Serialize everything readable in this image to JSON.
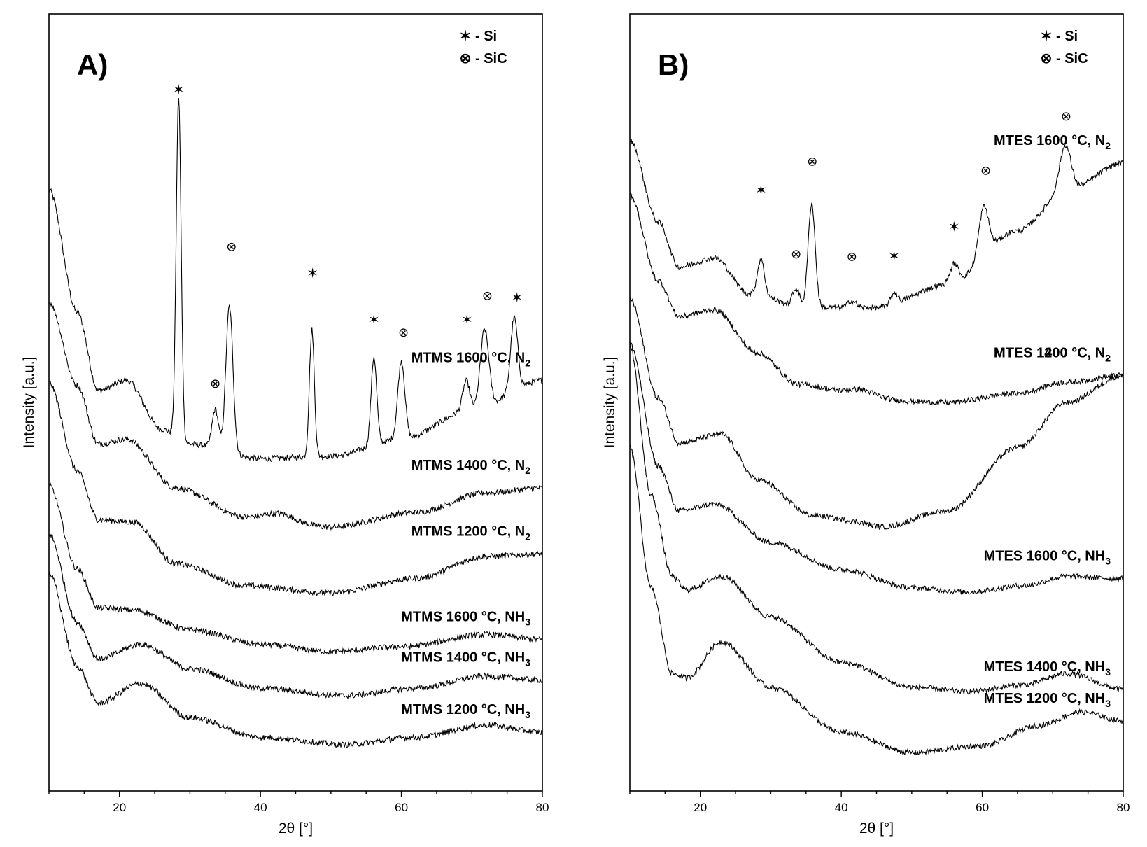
{
  "chart_data": [
    {
      "type": "line",
      "panel_label": "A)",
      "xlabel": "2θ [°]",
      "ylabel": "Intensity [a.u.]",
      "xlim": [
        10,
        80
      ],
      "xticks": [
        "20",
        "40",
        "60",
        "80"
      ],
      "legend": [
        {
          "symbol": "✶",
          "text": "- Si"
        },
        {
          "symbol": "⊗",
          "text": "- SiC"
        }
      ],
      "series": [
        {
          "name": "MTMS 1600 °C, N2",
          "label_main": "MTMS 1600 °C, N",
          "label_sub": "2",
          "offset": 5.2,
          "base_shape": [
            [
              10,
              5.5
            ],
            [
              14,
              3.0
            ],
            [
              17,
              1.4
            ],
            [
              21,
              1.6
            ],
            [
              26,
              0.6
            ],
            [
              30,
              0.3
            ],
            [
              40,
              0.0
            ],
            [
              50,
              0.05
            ],
            [
              60,
              0.4
            ],
            [
              70,
              1.0
            ],
            [
              80,
              1.6
            ]
          ],
          "peaks": [
            [
              28.4,
              7.0,
              0.35
            ],
            [
              33.6,
              0.8,
              0.45
            ],
            [
              35.6,
              3.0,
              0.5
            ],
            [
              47.3,
              2.6,
              0.35
            ],
            [
              56.1,
              1.8,
              0.4
            ],
            [
              60.0,
              1.6,
              0.5
            ],
            [
              69.2,
              0.6,
              0.5
            ],
            [
              71.8,
              1.6,
              0.6
            ],
            [
              76.0,
              1.5,
              0.5
            ]
          ]
        },
        {
          "name": "MTMS 1400 °C, N2",
          "label_main": "MTMS 1400 °C, N",
          "label_sub": "2",
          "offset": 3.9,
          "base_shape": [
            [
              10,
              4.5
            ],
            [
              14,
              2.8
            ],
            [
              17,
              1.6
            ],
            [
              21,
              1.7
            ],
            [
              28,
              0.7
            ],
            [
              38,
              0.1
            ],
            [
              50,
              -0.1
            ],
            [
              62,
              0.2
            ],
            [
              72,
              0.6
            ],
            [
              80,
              0.7
            ]
          ],
          "peaks": [
            [
              43,
              0.15,
              2
            ]
          ]
        },
        {
          "name": "MTMS 1200 °C, N2",
          "label_main": "MTMS 1200 °C, N",
          "label_sub": "2",
          "offset": 2.55,
          "base_shape": [
            [
              10,
              4.2
            ],
            [
              14,
              2.4
            ],
            [
              17,
              1.4
            ],
            [
              22,
              1.35
            ],
            [
              28,
              0.5
            ],
            [
              38,
              0.05
            ],
            [
              50,
              -0.1
            ],
            [
              62,
              0.2
            ],
            [
              72,
              0.65
            ],
            [
              80,
              0.7
            ]
          ],
          "peaks": []
        },
        {
          "name": "MTMS 1600 °C, NH3",
          "label_main": "MTMS 1600 °C, NH",
          "label_sub": "3",
          "offset": 1.35,
          "base_shape": [
            [
              10,
              3.3
            ],
            [
              14,
              1.6
            ],
            [
              17,
              0.8
            ],
            [
              22,
              0.75
            ],
            [
              30,
              0.35
            ],
            [
              40,
              0.05
            ],
            [
              50,
              -0.1
            ],
            [
              60,
              0.0
            ],
            [
              72,
              0.25
            ],
            [
              80,
              0.15
            ]
          ],
          "peaks": []
        },
        {
          "name": "MTMS 1400 °C, NH3",
          "label_main": "MTMS 1400 °C, NH",
          "label_sub": "3",
          "offset": 0.55,
          "base_shape": [
            [
              10,
              3.1
            ],
            [
              14,
              1.3
            ],
            [
              17,
              0.55
            ],
            [
              23,
              0.85
            ],
            [
              30,
              0.35
            ],
            [
              40,
              -0.05
            ],
            [
              52,
              -0.2
            ],
            [
              62,
              -0.05
            ],
            [
              72,
              0.2
            ],
            [
              80,
              0.12
            ]
          ],
          "peaks": []
        },
        {
          "name": "MTMS 1200 °C, NH3",
          "label_main": "MTMS 1200 °C, NH",
          "label_sub": "3",
          "offset": -0.55,
          "base_shape": [
            [
              10,
              3.4
            ],
            [
              14,
              1.5
            ],
            [
              17,
              0.75
            ],
            [
              23,
              1.15
            ],
            [
              30,
              0.45
            ],
            [
              40,
              0.05
            ],
            [
              52,
              -0.1
            ],
            [
              62,
              0.05
            ],
            [
              72,
              0.3
            ],
            [
              80,
              0.15
            ]
          ],
          "peaks": []
        }
      ],
      "markers": [
        {
          "type": "Si",
          "x": 28.4,
          "y": 12.75
        },
        {
          "type": "SiC",
          "x": 35.9,
          "y": 9.55
        },
        {
          "type": "SiC",
          "x": 33.6,
          "y": 6.75
        },
        {
          "type": "Si",
          "x": 47.4,
          "y": 9.0
        },
        {
          "type": "Si",
          "x": 56.1,
          "y": 8.05
        },
        {
          "type": "SiC",
          "x": 60.3,
          "y": 7.8
        },
        {
          "type": "Si",
          "x": 69.3,
          "y": 8.05
        },
        {
          "type": "SiC",
          "x": 72.2,
          "y": 8.55
        },
        {
          "type": "Si",
          "x": 76.4,
          "y": 8.5
        }
      ]
    },
    {
      "type": "line",
      "panel_label": "B)",
      "xlabel": "2θ [°]",
      "ylabel": "Intensity [a.u.]",
      "xlim": [
        10,
        80
      ],
      "xticks": [
        "20",
        "40",
        "60",
        "80"
      ],
      "legend": [
        {
          "symbol": "✶",
          "text": "- Si"
        },
        {
          "symbol": "⊗",
          "text": "- SiC"
        }
      ],
      "series": [
        {
          "name": "MTES 1600 °C, N2",
          "label_main": "MTES 1600 °C, N",
          "label_sub": "2",
          "offset": 7.4,
          "base_shape": [
            [
              10,
              4.1
            ],
            [
              14,
              2.3
            ],
            [
              17,
              1.3
            ],
            [
              22,
              1.5
            ],
            [
              27,
              0.7
            ],
            [
              35,
              0.4
            ],
            [
              45,
              0.4
            ],
            [
              55,
              0.9
            ],
            [
              65,
              2.1
            ],
            [
              72,
              3.0
            ],
            [
              80,
              3.6
            ]
          ],
          "peaks": [
            [
              28.6,
              0.8,
              0.5
            ],
            [
              33.6,
              0.4,
              0.5
            ],
            [
              35.8,
              2.3,
              0.5
            ],
            [
              41.5,
              0.15,
              0.6
            ],
            [
              47.5,
              0.25,
              0.5
            ],
            [
              56.0,
              0.45,
              0.6
            ],
            [
              60.2,
              1.1,
              0.7
            ],
            [
              71.8,
              1.0,
              0.8
            ]
          ]
        },
        {
          "name": "MTES 1400 °C, N2",
          "label_main": "MTES 1400 °C, N",
          "label_sub": "2",
          "offset": 5.6,
          "base_shape": [
            [
              10,
              4.7
            ],
            [
              14,
              2.8
            ],
            [
              17,
              2.0
            ],
            [
              22,
              2.15
            ],
            [
              28,
              1.2
            ],
            [
              34,
              0.5
            ],
            [
              45,
              0.15
            ],
            [
              55,
              0.1
            ],
            [
              65,
              0.3
            ],
            [
              72,
              0.55
            ],
            [
              80,
              0.7
            ]
          ],
          "peaks": [
            [
              43,
              0.2,
              2
            ]
          ]
        },
        {
          "name": "MTES 1200 °C, N2",
          "label_main": "MTES 1200 °C, N",
          "label_sub": "2",
          "offset": 2.7,
          "base_shape": [
            [
              10,
              5.3
            ],
            [
              14,
              3.1
            ],
            [
              17,
              2.1
            ],
            [
              23,
              2.3
            ],
            [
              28,
              1.3
            ],
            [
              36,
              0.5
            ],
            [
              45,
              0.2
            ],
            [
              55,
              0.6
            ],
            [
              65,
              2.0
            ],
            [
              72,
              3.0
            ],
            [
              80,
              3.6
            ]
          ],
          "peaks": [
            [
              43,
              0.1,
              2
            ]
          ]
        },
        {
          "name": "MTES 1600 °C, NH3",
          "label_main": "MTES 1600 °C, NH",
          "label_sub": "3",
          "offset": 1.6,
          "base_shape": [
            [
              10,
              5.4
            ],
            [
              14,
              2.7
            ],
            [
              17,
              1.7
            ],
            [
              22,
              1.85
            ],
            [
              30,
              1.0
            ],
            [
              40,
              0.4
            ],
            [
              50,
              0.0
            ],
            [
              58,
              -0.1
            ],
            [
              66,
              0.05
            ],
            [
              72,
              0.25
            ],
            [
              80,
              0.2
            ]
          ],
          "peaks": []
        },
        {
          "name": "MTES 1400 °C, NH3",
          "label_main": "MTES 1400 °C, NH",
          "label_sub": "3",
          "offset": -0.35,
          "base_shape": [
            [
              10,
              7.3
            ],
            [
              13,
              4.0
            ],
            [
              16,
              2.2
            ],
            [
              18,
              1.9
            ],
            [
              23,
              2.2
            ],
            [
              30,
              1.3
            ],
            [
              40,
              0.3
            ],
            [
              50,
              -0.25
            ],
            [
              58,
              -0.35
            ],
            [
              66,
              -0.2
            ],
            [
              72,
              0.05
            ],
            [
              80,
              -0.3
            ]
          ],
          "peaks": []
        },
        {
          "name": "MTES 1200 °C, NH3",
          "label_main": "MTES 1200 °C, NH",
          "label_sub": "3",
          "offset": -1.6,
          "base_shape": [
            [
              10,
              6.3
            ],
            [
              13,
              3.2
            ],
            [
              16,
              1.3
            ],
            [
              18,
              1.2
            ],
            [
              23,
              2.0
            ],
            [
              30,
              1.0
            ],
            [
              40,
              0.0
            ],
            [
              50,
              -0.45
            ],
            [
              60,
              -0.3
            ],
            [
              68,
              0.15
            ],
            [
              74,
              0.45
            ],
            [
              80,
              0.25
            ]
          ],
          "peaks": []
        }
      ],
      "markers": [
        {
          "type": "Si",
          "x": 28.6,
          "y": 10.4
        },
        {
          "type": "SiC",
          "x": 35.9,
          "y": 11.05
        },
        {
          "type": "SiC",
          "x": 33.6,
          "y": 9.0
        },
        {
          "type": "SiC",
          "x": 41.5,
          "y": 8.95
        },
        {
          "type": "Si",
          "x": 47.5,
          "y": 8.95
        },
        {
          "type": "Si",
          "x": 56.0,
          "y": 9.6
        },
        {
          "type": "SiC",
          "x": 60.5,
          "y": 10.85
        },
        {
          "type": "SiC",
          "x": 71.9,
          "y": 12.05
        }
      ]
    }
  ]
}
